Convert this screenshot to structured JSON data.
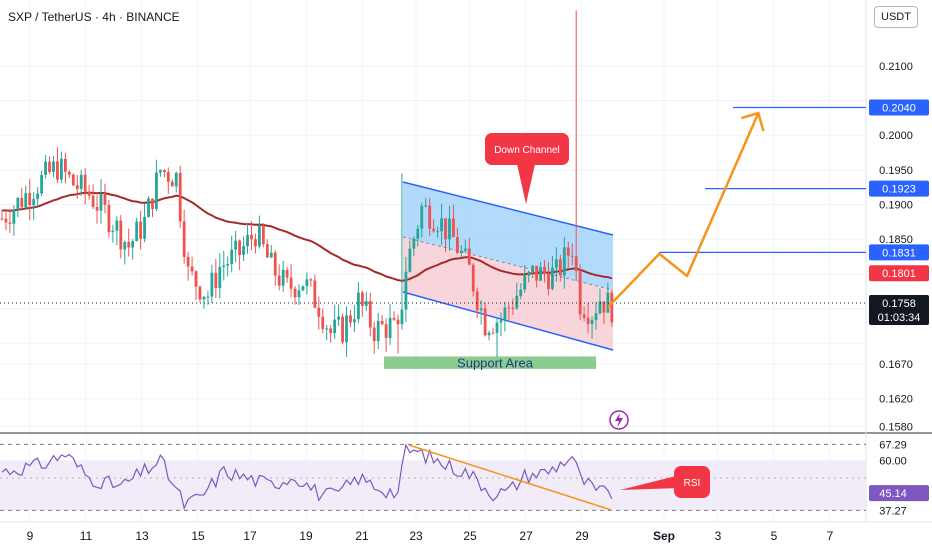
{
  "header": {
    "title": "SXP / TetherUS · 4h · BINANCE",
    "currency_button": "USDT"
  },
  "colors": {
    "bull": "#26a69a",
    "bear": "#ef5350",
    "ma": "#a52a2a",
    "channel_line": "#2962ff",
    "channel_upper_fill": "#90caf9",
    "channel_lower_fill": "#f4c7cd",
    "support_fill": "#66bb6a",
    "projection": "#f7931a",
    "rsi": "#7e57c2",
    "rsi_band": "#ede7f6",
    "rsi_div": "#f7931a",
    "label_red": "#f23645",
    "level_blue": "#2962ff",
    "text": "#131722",
    "grid": "#f0f3fa"
  },
  "chart_data": [
    {
      "type": "candlestick",
      "title": "SXP / TetherUS · 4h · BINANCE",
      "y_axis_ticks": [
        "0.2100",
        "0.2000",
        "0.1950",
        "0.1900",
        "0.1850",
        "0.1670",
        "0.1620",
        "0.1580"
      ],
      "x_tick_labels": [
        "9",
        "11",
        "13",
        "15",
        "17",
        "19",
        "21",
        "23",
        "25",
        "27",
        "29",
        "Sep",
        "3",
        "5",
        "7"
      ],
      "ylim": [
        0.1572,
        0.2195
      ],
      "current_price": "0.1758",
      "countdown": "01:03:34",
      "price_labels": [
        {
          "value": "0.2040",
          "style": "blue"
        },
        {
          "value": "0.1923",
          "style": "blue"
        },
        {
          "value": "0.1831",
          "style": "blue"
        },
        {
          "value": "0.1801",
          "style": "red"
        },
        {
          "value": "0.1758",
          "style": "black"
        }
      ],
      "horizontal_levels": [
        0.204,
        0.1923,
        0.1831
      ],
      "annotations": {
        "down_channel": "Down Channel",
        "support_area": "Support Area"
      },
      "support_area_range": [
        0.1663,
        0.1681
      ],
      "projection_path": [
        {
          "t": 153,
          "price": 0.1752
        },
        {
          "t": 166,
          "price": 0.1829
        },
        {
          "t": 173,
          "price": 0.1797
        },
        {
          "t": 191,
          "price": 0.2032
        }
      ]
    },
    {
      "type": "line",
      "title": "",
      "y_axis_ticks": [
        "67.29",
        "60.00",
        "45.14",
        "37.27"
      ],
      "current_value": "45.14",
      "annotation": "RSI",
      "ylim": [
        32,
        72
      ]
    }
  ],
  "x_labels_top": []
}
